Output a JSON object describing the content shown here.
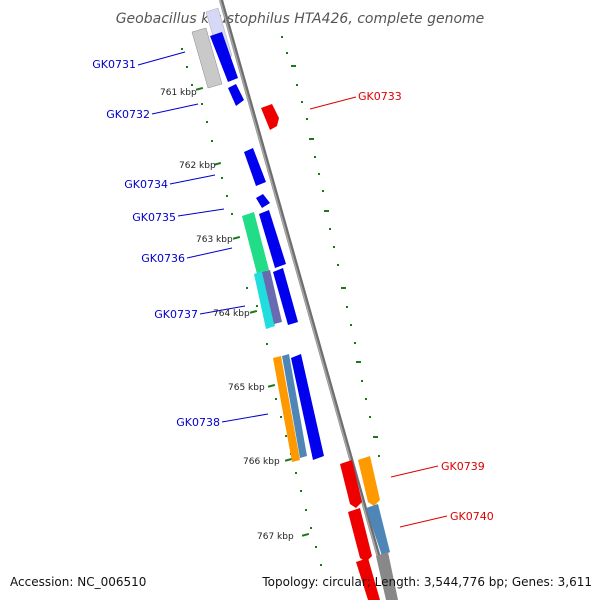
{
  "title": "Geobacillus kaustophilus HTA426, complete genome",
  "footer": {
    "accession": "Accession: NC_006510",
    "topology": "Topology: circular; Length: 3,544,776 bp; Genes: 3,611"
  },
  "ticks": [
    "761 kbp",
    "762 kbp",
    "763 kbp",
    "764 kbp",
    "765 kbp",
    "766 kbp",
    "767 kbp"
  ],
  "genes_forward": [
    "GK0731",
    "GK0732",
    "GK0734",
    "GK0735",
    "GK0736",
    "GK0737",
    "GK0738"
  ],
  "genes_reverse": [
    "GK0733",
    "GK0739",
    "GK0740"
  ],
  "colors": {
    "backbone": "#808080",
    "fwd_cds": "#0000ee",
    "rev_cds": "#ee0000",
    "tick": "#1a7a1a",
    "label_fwd": "#0000cc",
    "label_rev": "#dd0000",
    "orange": "#ff9900",
    "steelblue": "#4f86b8",
    "green": "#22dd88",
    "cyan": "#22dddd",
    "slate": "#6a6ab0",
    "gray": "#c0c0c0"
  }
}
